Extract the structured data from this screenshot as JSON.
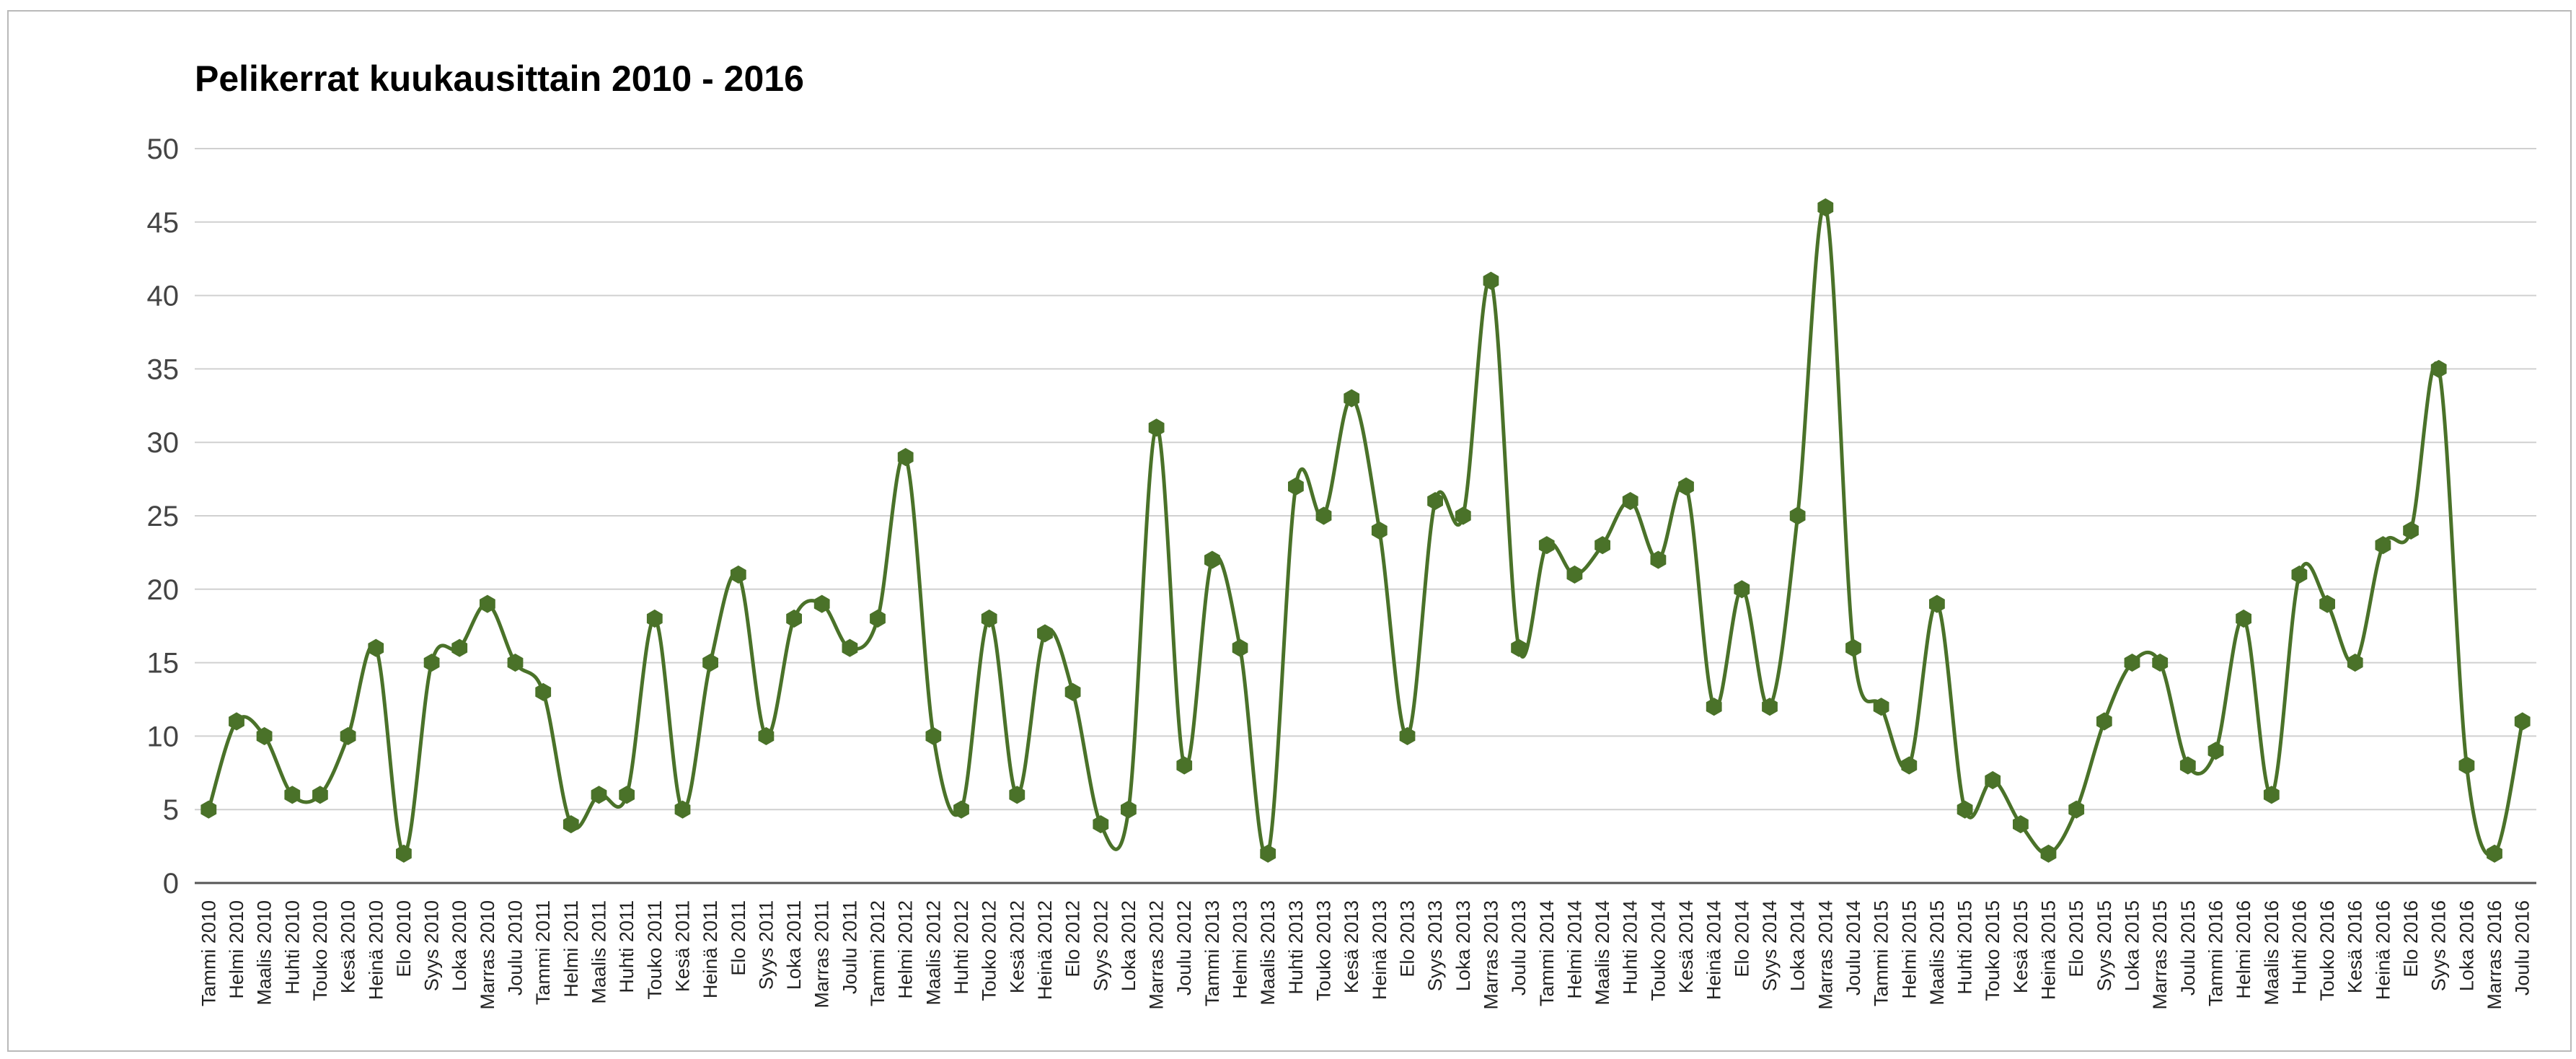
{
  "chart_data": {
    "type": "line",
    "title": "Pelikerrat kuukausittain 2010 - 2016",
    "xlabel": "",
    "ylabel": "",
    "ylim": [
      0,
      50
    ],
    "yticks": [
      0,
      5,
      10,
      15,
      20,
      25,
      30,
      35,
      40,
      45,
      50
    ],
    "grid": true,
    "legend": "none",
    "smooth": true,
    "colors": {
      "series": "#4a7229",
      "grid": "#d0d0d0",
      "axis": "#555555"
    },
    "categories": [
      "Tammi 2010",
      "Helmi 2010",
      "Maalis 2010",
      "Huhti 2010",
      "Touko 2010",
      "Kesä 2010",
      "Heinä 2010",
      "Elo 2010",
      "Syys 2010",
      "Loka 2010",
      "Marras 2010",
      "Joulu 2010",
      "Tammi 2011",
      "Helmi 2011",
      "Maalis 2011",
      "Huhti 2011",
      "Touko 2011",
      "Kesä 2011",
      "Heinä 2011",
      "Elo 2011",
      "Syys 2011",
      "Loka 2011",
      "Marras 2011",
      "Joulu 2011",
      "Tammi 2012",
      "Helmi 2012",
      "Maalis 2012",
      "Huhti 2012",
      "Touko 2012",
      "Kesä 2012",
      "Heinä 2012",
      "Elo 2012",
      "Syys 2012",
      "Loka 2012",
      "Marras 2012",
      "Joulu 2012",
      "Tammi 2013",
      "Helmi 2013",
      "Maalis 2013",
      "Huhti 2013",
      "Touko 2013",
      "Kesä 2013",
      "Heinä 2013",
      "Elo 2013",
      "Syys 2013",
      "Loka 2013",
      "Marras 2013",
      "Joulu 2013",
      "Tammi 2014",
      "Helmi 2014",
      "Maalis 2014",
      "Huhti 2014",
      "Touko 2014",
      "Kesä 2014",
      "Heinä 2014",
      "Elo 2014",
      "Syys 2014",
      "Loka 2014",
      "Marras 2014",
      "Joulu 2014",
      "Tammi 2015",
      "Helmi 2015",
      "Maalis 2015",
      "Huhti 2015",
      "Touko 2015",
      "Kesä 2015",
      "Heinä 2015",
      "Elo 2015",
      "Syys 2015",
      "Loka 2015",
      "Marras 2015",
      "Joulu 2015",
      "Tammi 2016",
      "Helmi 2016",
      "Maalis 2016",
      "Huhti 2016",
      "Touko 2016",
      "Kesä 2016",
      "Heinä 2016",
      "Elo 2016",
      "Syys 2016",
      "Loka 2016",
      "Marras 2016",
      "Joulu 2016"
    ],
    "series": [
      {
        "values": [
          5,
          11,
          10,
          6,
          6,
          10,
          16,
          2,
          15,
          16,
          19,
          15,
          13,
          4,
          6,
          6,
          18,
          5,
          15,
          21,
          10,
          18,
          19,
          16,
          18,
          29,
          10,
          5,
          18,
          6,
          17,
          13,
          4,
          5,
          31,
          8,
          22,
          16,
          2,
          27,
          25,
          33,
          24,
          10,
          26,
          25,
          41,
          16,
          23,
          21,
          23,
          26,
          22,
          27,
          12,
          20,
          12,
          25,
          46,
          16,
          12,
          8,
          19,
          5,
          7,
          4,
          2,
          5,
          11,
          15,
          15,
          8,
          9,
          18,
          6,
          21,
          19,
          15,
          23,
          24,
          35,
          8,
          2,
          11
        ]
      }
    ]
  }
}
